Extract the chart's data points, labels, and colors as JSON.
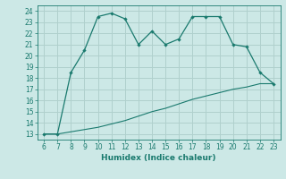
{
  "xlabel": "Humidex (Indice chaleur)",
  "x_main": [
    6,
    7,
    8,
    9,
    10,
    11,
    12,
    13,
    14,
    15,
    16,
    17,
    18,
    19,
    20,
    21,
    22,
    23
  ],
  "y_main": [
    13,
    13,
    18.5,
    20.5,
    23.5,
    23.8,
    23.3,
    21,
    22.2,
    21,
    21.5,
    23.5,
    23.5,
    23.5,
    21,
    20.8,
    18.5,
    17.5
  ],
  "x_line": [
    6,
    7,
    8,
    9,
    10,
    11,
    12,
    13,
    14,
    15,
    16,
    17,
    18,
    19,
    20,
    21,
    22,
    23
  ],
  "y_line": [
    13,
    13,
    13.2,
    13.4,
    13.6,
    13.9,
    14.2,
    14.6,
    15.0,
    15.3,
    15.7,
    16.1,
    16.4,
    16.7,
    17.0,
    17.2,
    17.5,
    17.5
  ],
  "line_color": "#1a7a6e",
  "bg_color": "#cce8e6",
  "grid_color": "#b0d0cd",
  "xlim": [
    5.5,
    23.5
  ],
  "ylim": [
    12.5,
    24.5
  ],
  "xticks": [
    6,
    7,
    8,
    9,
    10,
    11,
    12,
    13,
    14,
    15,
    16,
    17,
    18,
    19,
    20,
    21,
    22,
    23
  ],
  "yticks": [
    13,
    14,
    15,
    16,
    17,
    18,
    19,
    20,
    21,
    22,
    23,
    24
  ],
  "xlabel_fontsize": 6.5,
  "tick_fontsize": 5.5
}
